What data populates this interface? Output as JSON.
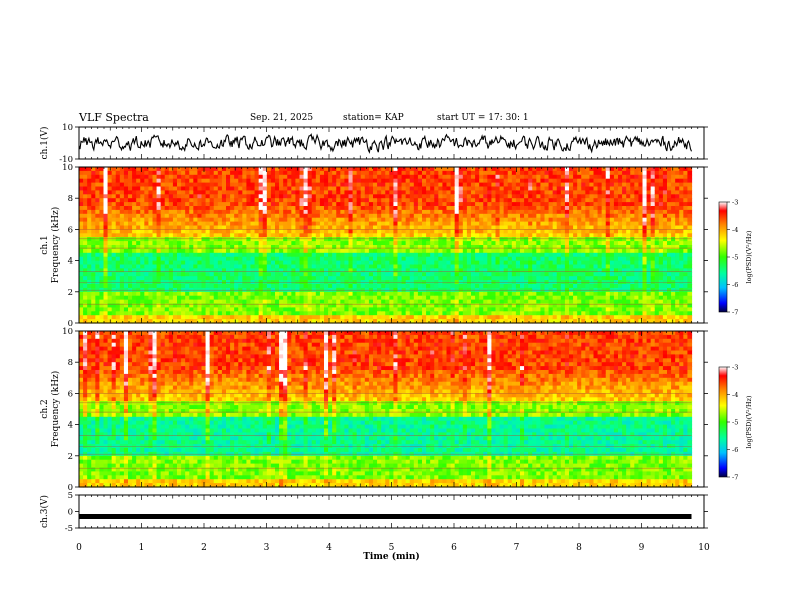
{
  "header": {
    "title": "VLF Spectra",
    "date": "Sep. 21, 2025",
    "station": "station= KAP",
    "start": "start  UT  =   17: 30: 1"
  },
  "chart_data": [
    {
      "type": "line",
      "name": "ch1-voltage",
      "ylabel": "ch.1(V)",
      "ylim": [
        -10,
        10
      ],
      "yticks": [
        10,
        -10
      ],
      "xlim": [
        0,
        10
      ],
      "x_end": 9.8,
      "description_values": {
        "mean": 0,
        "spread": 5
      }
    },
    {
      "type": "heatmap",
      "name": "ch1-spectrogram",
      "ylabel_lines": [
        "ch.1",
        "Frequency  (kHz)"
      ],
      "ylim": [
        0,
        10
      ],
      "yticks": [
        0,
        2,
        4,
        6,
        8,
        10
      ],
      "xlim": [
        0,
        10
      ],
      "x_end": 9.8,
      "colorbar": {
        "label": "log(PSD)(V²/Hz)",
        "ticks": [
          -3,
          -4,
          -5,
          -6,
          -7
        ],
        "range": [
          -7,
          -3
        ]
      }
    },
    {
      "type": "heatmap",
      "name": "ch2-spectrogram",
      "ylabel_lines": [
        "ch.2",
        "Frequency  (kHz)"
      ],
      "ylim": [
        0,
        10
      ],
      "yticks": [
        0,
        2,
        4,
        6,
        8,
        10
      ],
      "xlim": [
        0,
        10
      ],
      "x_end": 9.8,
      "colorbar": {
        "label": "log(PSD)(V²/Hz)",
        "ticks": [
          -3,
          -4,
          -5,
          -6,
          -7
        ],
        "range": [
          -7,
          -3
        ]
      }
    },
    {
      "type": "line",
      "name": "ch3-voltage",
      "ylabel": "ch.3(V)",
      "ylim": [
        -5,
        5
      ],
      "yticks": [
        5,
        0,
        -5
      ],
      "xlim": [
        0,
        10
      ],
      "x_end": 9.8,
      "constant_value": -1.5,
      "xlabel": "Time  (min)",
      "xticks": [
        0,
        1,
        2,
        3,
        4,
        5,
        6,
        7,
        8,
        9,
        10
      ]
    }
  ]
}
